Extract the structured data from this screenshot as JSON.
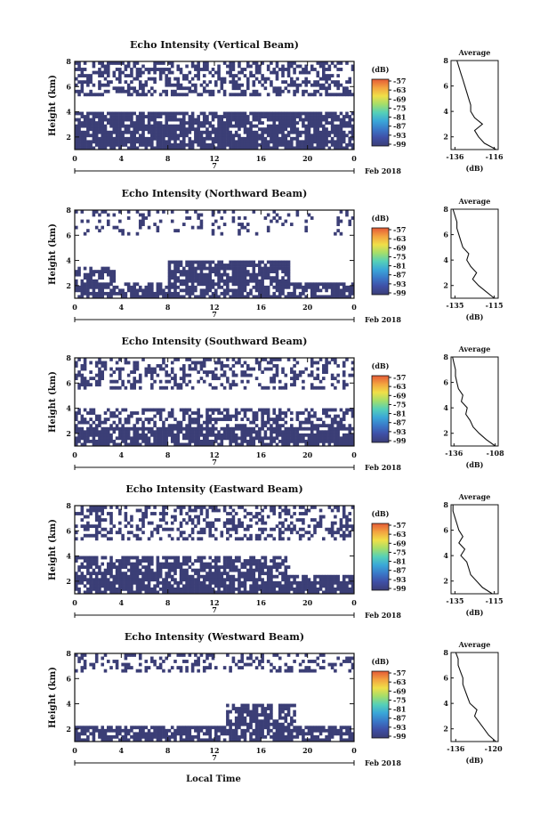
{
  "figure": {
    "colors": {
      "echo": "#3b3e76",
      "background": "#ffffff",
      "frame": "#111111",
      "colorbar": [
        "#3b3e76",
        "#3f4fa6",
        "#3a78c8",
        "#3aa7d8",
        "#55d0b8",
        "#a4de6a",
        "#f0df48",
        "#f3a340",
        "#e45a36"
      ]
    },
    "x_axis_label": "Local Time",
    "date_number": "7",
    "date_text": "Feb 2018"
  },
  "chart_data": [
    {
      "type": "heatmap",
      "title": "Echo Intensity (Vertical Beam)",
      "ylabel": "Height (km)",
      "yticks": [
        "2",
        "4",
        "6",
        "8"
      ],
      "xticks": [
        "0",
        "4",
        "8",
        "12",
        "16",
        "20",
        "0"
      ],
      "xlim": [
        0,
        24
      ],
      "ylim": [
        1,
        8
      ],
      "colorbar": {
        "unit": "(dB)",
        "ticks": [
          "-57",
          "-63",
          "-69",
          "-75",
          "-81",
          "-87",
          "-93",
          "-99"
        ]
      },
      "echo_layers": [
        {
          "x0": 0,
          "x1": 24,
          "y0": 1,
          "y1": 4,
          "fill": 0.82
        },
        {
          "x0": 0,
          "x1": 24,
          "y0": 5.3,
          "y1": 8,
          "fill": 0.45
        }
      ],
      "average_profile": {
        "title": "Average",
        "xlabel": "(dB)",
        "xticks": [
          "-136",
          "-116"
        ],
        "xlim": [
          -138,
          -114
        ],
        "yticks": [
          "2",
          "4",
          "6",
          "8"
        ],
        "ylim": [
          1,
          8
        ],
        "heights": [
          1,
          1.5,
          2,
          2.5,
          3,
          3.5,
          4,
          4.5,
          5,
          5.5,
          6,
          6.5,
          7,
          7.5,
          8
        ],
        "values": [
          -115,
          -121,
          -124,
          -126,
          -122,
          -126,
          -128,
          -128,
          -129,
          -130,
          -131,
          -132,
          -133,
          -134,
          -135
        ]
      }
    },
    {
      "type": "heatmap",
      "title": "Echo Intensity (Northward Beam)",
      "ylabel": "Height (km)",
      "yticks": [
        "2",
        "4",
        "6",
        "8"
      ],
      "xticks": [
        "0",
        "4",
        "8",
        "12",
        "16",
        "20",
        "0"
      ],
      "xlim": [
        0,
        24
      ],
      "ylim": [
        1,
        8
      ],
      "colorbar": {
        "unit": "(dB)",
        "ticks": [
          "-57",
          "-63",
          "-69",
          "-75",
          "-81",
          "-87",
          "-93",
          "-99"
        ]
      },
      "echo_layers": [
        {
          "x0": 0,
          "x1": 24,
          "y0": 1,
          "y1": 2.3,
          "fill": 0.75
        },
        {
          "x0": 0,
          "x1": 3.5,
          "y0": 2.3,
          "y1": 3.5,
          "fill": 0.55
        },
        {
          "x0": 8,
          "x1": 18.5,
          "y0": 2.3,
          "y1": 4,
          "fill": 0.85
        },
        {
          "x0": 0,
          "x1": 24,
          "y0": 6,
          "y1": 8,
          "fill": 0.18
        }
      ],
      "average_profile": {
        "title": "Average",
        "xlabel": "(dB)",
        "xticks": [
          "-135",
          "-115"
        ],
        "xlim": [
          -137,
          -113
        ],
        "yticks": [
          "2",
          "4",
          "6",
          "8"
        ],
        "ylim": [
          1,
          8
        ],
        "heights": [
          1,
          1.5,
          2,
          2.5,
          3,
          3.5,
          4,
          4.5,
          5,
          5.5,
          6,
          6.5,
          7,
          7.5,
          8
        ],
        "values": [
          -115,
          -119,
          -123,
          -126,
          -124,
          -127,
          -129,
          -128,
          -131,
          -132,
          -133,
          -134,
          -134,
          -135,
          -136
        ]
      }
    },
    {
      "type": "heatmap",
      "title": "Echo Intensity (Southward Beam)",
      "ylabel": "Height (km)",
      "yticks": [
        "2",
        "4",
        "6",
        "8"
      ],
      "xticks": [
        "0",
        "4",
        "8",
        "12",
        "16",
        "20",
        "0"
      ],
      "xlim": [
        0,
        24
      ],
      "ylim": [
        1,
        8
      ],
      "colorbar": {
        "unit": "(dB)",
        "ticks": [
          "-57",
          "-63",
          "-69",
          "-75",
          "-81",
          "-87",
          "-93",
          "-99"
        ]
      },
      "echo_layers": [
        {
          "x0": 0,
          "x1": 24,
          "y0": 1,
          "y1": 2.5,
          "fill": 0.8
        },
        {
          "x0": 0,
          "x1": 24,
          "y0": 2.5,
          "y1": 4,
          "fill": 0.5
        },
        {
          "x0": 0,
          "x1": 24,
          "y0": 5.5,
          "y1": 8,
          "fill": 0.35
        }
      ],
      "average_profile": {
        "title": "Average",
        "xlabel": "(dB)",
        "xticks": [
          "-136",
          "-108"
        ],
        "xlim": [
          -138,
          -106
        ],
        "yticks": [
          "2",
          "4",
          "6",
          "8"
        ],
        "ylim": [
          1,
          8
        ],
        "heights": [
          1,
          1.5,
          2,
          2.5,
          3,
          3.5,
          4,
          4.5,
          5,
          5.5,
          6,
          6.5,
          7,
          7.5,
          8
        ],
        "values": [
          -108,
          -114,
          -119,
          -123,
          -125,
          -128,
          -127,
          -131,
          -130,
          -133,
          -134,
          -135,
          -135,
          -136,
          -137
        ]
      }
    },
    {
      "type": "heatmap",
      "title": "Echo Intensity (Eastward Beam)",
      "ylabel": "Height (km)",
      "yticks": [
        "2",
        "4",
        "6",
        "8"
      ],
      "xticks": [
        "0",
        "4",
        "8",
        "12",
        "16",
        "20",
        "0"
      ],
      "xlim": [
        0,
        24
      ],
      "ylim": [
        1,
        8
      ],
      "colorbar": {
        "unit": "(dB)",
        "ticks": [
          "-57",
          "-63",
          "-69",
          "-75",
          "-81",
          "-87",
          "-93",
          "-99"
        ]
      },
      "echo_layers": [
        {
          "x0": 0,
          "x1": 24,
          "y0": 1,
          "y1": 2.4,
          "fill": 0.85
        },
        {
          "x0": 0,
          "x1": 18.5,
          "y0": 2.4,
          "y1": 4,
          "fill": 0.7
        },
        {
          "x0": 0,
          "x1": 24,
          "y0": 5.3,
          "y1": 8,
          "fill": 0.42
        }
      ],
      "average_profile": {
        "title": "Average",
        "xlabel": "(dB)",
        "xticks": [
          "-135",
          "-115"
        ],
        "xlim": [
          -137,
          -113
        ],
        "yticks": [
          "2",
          "4",
          "6",
          "8"
        ],
        "ylim": [
          1,
          8
        ],
        "heights": [
          1,
          1.5,
          2,
          2.5,
          3,
          3.5,
          4,
          4.5,
          5,
          5.5,
          6,
          6.5,
          7,
          7.5,
          8
        ],
        "values": [
          -116,
          -121,
          -124,
          -127,
          -128,
          -129,
          -132,
          -130,
          -133,
          -131,
          -133,
          -134,
          -135,
          -136,
          -136
        ]
      }
    },
    {
      "type": "heatmap",
      "title": "Echo Intensity (Westward Beam)",
      "ylabel": "Height (km)",
      "yticks": [
        "2",
        "4",
        "6",
        "8"
      ],
      "xticks": [
        "0",
        "4",
        "8",
        "12",
        "16",
        "20",
        "0"
      ],
      "xlim": [
        0,
        24
      ],
      "ylim": [
        1,
        8
      ],
      "colorbar": {
        "unit": "(dB)",
        "ticks": [
          "-57",
          "-63",
          "-69",
          "-75",
          "-81",
          "-87",
          "-93",
          "-99"
        ]
      },
      "echo_layers": [
        {
          "x0": 0,
          "x1": 24,
          "y0": 1,
          "y1": 2.2,
          "fill": 0.75
        },
        {
          "x0": 13,
          "x1": 19,
          "y0": 2.2,
          "y1": 4,
          "fill": 0.7
        },
        {
          "x0": 0,
          "x1": 24,
          "y0": 6.5,
          "y1": 8,
          "fill": 0.32
        }
      ],
      "average_profile": {
        "title": "Average",
        "xlabel": "(dB)",
        "xticks": [
          "-136",
          "-120"
        ],
        "xlim": [
          -138,
          -118
        ],
        "yticks": [
          "2",
          "4",
          "6",
          "8"
        ],
        "ylim": [
          1,
          8
        ],
        "heights": [
          1,
          1.5,
          2,
          2.5,
          3,
          3.5,
          4,
          4.5,
          5,
          5.5,
          6,
          6.5,
          7,
          7.5,
          8
        ],
        "values": [
          -119,
          -122,
          -124,
          -126,
          -128,
          -127,
          -130,
          -131,
          -132,
          -133,
          -133,
          -134,
          -135,
          -135,
          -136
        ]
      }
    }
  ]
}
